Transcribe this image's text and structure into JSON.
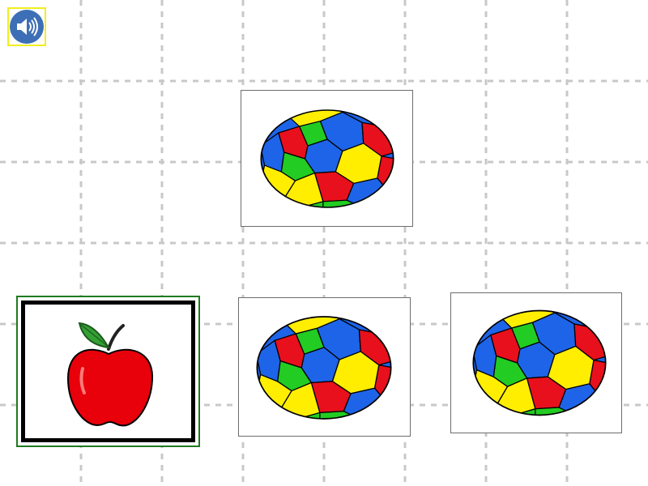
{
  "game": {
    "audio_button": {
      "icon": "speaker-icon",
      "color": "#3d6fb6",
      "outline": "#f2ee1c"
    },
    "target_card": {
      "item": "soccer-ball"
    },
    "choices": [
      {
        "item": "apple",
        "selected": true
      },
      {
        "item": "soccer-ball",
        "selected": false
      },
      {
        "item": "soccer-ball",
        "selected": false
      }
    ],
    "colors": {
      "grid_line": "#c8c8c8",
      "selection_border": "#1f7a1f",
      "apple": "#e8000b",
      "ball_red": "#e8101c",
      "ball_blue": "#1e64e8",
      "ball_green": "#22cc22",
      "ball_yellow": "#ffee00"
    }
  }
}
